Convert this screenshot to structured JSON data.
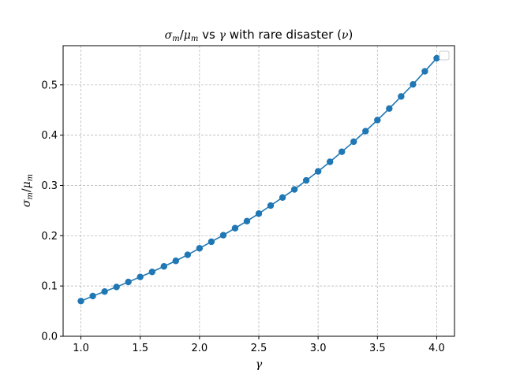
{
  "chart_data": {
    "type": "line",
    "title": {
      "num_symbol": "σ",
      "num_sub": "m",
      "slash": "/",
      "den_symbol": "μ",
      "den_sub": "m",
      "mid": " vs ",
      "gamma": "γ",
      "tail": " with rare disaster (",
      "nu": "ν",
      "close": ")"
    },
    "xlabel": "γ",
    "ylabel": {
      "num_symbol": "σ",
      "num_sub": "m",
      "slash": "/",
      "den_symbol": "μ",
      "den_sub": "m"
    },
    "xlim": [
      0.85,
      4.15
    ],
    "ylim": [
      0.0,
      0.578
    ],
    "xticks": [
      1.0,
      1.5,
      2.0,
      2.5,
      3.0,
      3.5,
      4.0
    ],
    "xtick_labels": [
      "1.0",
      "1.5",
      "2.0",
      "2.5",
      "3.0",
      "3.5",
      "4.0"
    ],
    "yticks": [
      0.0,
      0.1,
      0.2,
      0.3,
      0.4,
      0.5
    ],
    "ytick_labels": [
      "0.0",
      "0.1",
      "0.2",
      "0.3",
      "0.4",
      "0.5"
    ],
    "grid": true,
    "grid_style": "dashed",
    "legend": "top-right, empty",
    "colors": {
      "series": "#1f77b4",
      "grid": "#b0b0b0",
      "axes": "#000000"
    },
    "series": [
      {
        "marker": "circle",
        "x": [
          1.0,
          1.1,
          1.2,
          1.3,
          1.4,
          1.5,
          1.6,
          1.7,
          1.8,
          1.9,
          2.0,
          2.1,
          2.2,
          2.3,
          2.4,
          2.5,
          2.6,
          2.7,
          2.8,
          2.9,
          3.0,
          3.1,
          3.2,
          3.3,
          3.4,
          3.5,
          3.6,
          3.7,
          3.8,
          3.9,
          4.0
        ],
        "y": [
          0.07,
          0.08,
          0.089,
          0.098,
          0.108,
          0.118,
          0.128,
          0.139,
          0.15,
          0.162,
          0.175,
          0.188,
          0.201,
          0.215,
          0.229,
          0.244,
          0.26,
          0.276,
          0.292,
          0.31,
          0.328,
          0.347,
          0.367,
          0.387,
          0.408,
          0.43,
          0.453,
          0.477,
          0.501,
          0.527,
          0.553
        ]
      }
    ]
  }
}
